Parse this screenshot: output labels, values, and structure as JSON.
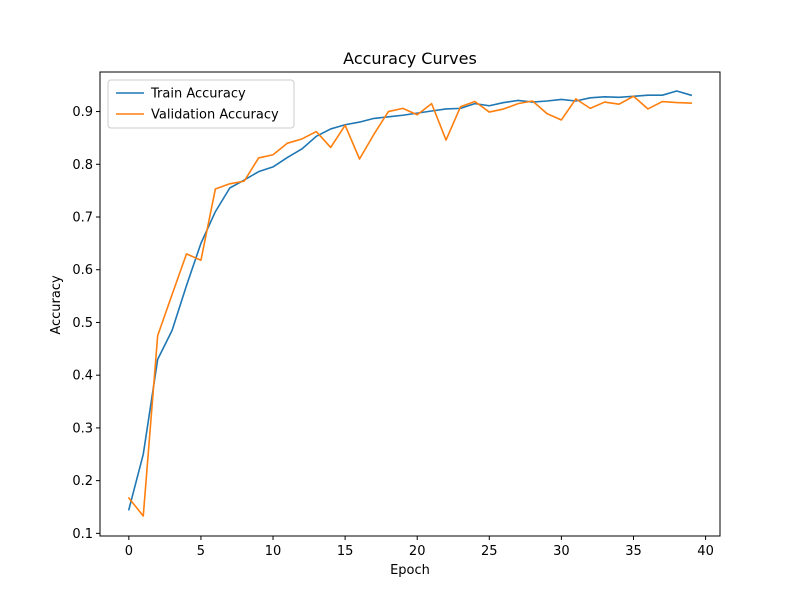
{
  "chart_data": {
    "type": "line",
    "title": "Accuracy Curves",
    "xlabel": "Epoch",
    "ylabel": "Accuracy",
    "xlim": [
      -2,
      41
    ],
    "ylim": [
      0.095,
      0.975
    ],
    "xticks": [
      0,
      5,
      10,
      15,
      20,
      25,
      30,
      35,
      40
    ],
    "yticks": [
      0.1,
      0.2,
      0.3,
      0.4,
      0.5,
      0.6,
      0.7,
      0.8,
      0.9
    ],
    "grid": false,
    "legend_position": "upper-left",
    "x": [
      0,
      1,
      2,
      3,
      4,
      5,
      6,
      7,
      8,
      9,
      10,
      11,
      12,
      13,
      14,
      15,
      16,
      17,
      18,
      19,
      20,
      21,
      22,
      23,
      24,
      25,
      26,
      27,
      28,
      29,
      30,
      31,
      32,
      33,
      34,
      35,
      36,
      37,
      38,
      39
    ],
    "series": [
      {
        "name": "Train Accuracy",
        "color": "#1f77b4",
        "values": [
          0.145,
          0.25,
          0.43,
          0.485,
          0.57,
          0.65,
          0.71,
          0.755,
          0.77,
          0.786,
          0.795,
          0.813,
          0.829,
          0.853,
          0.867,
          0.875,
          0.88,
          0.887,
          0.89,
          0.893,
          0.897,
          0.901,
          0.905,
          0.906,
          0.915,
          0.911,
          0.917,
          0.921,
          0.918,
          0.92,
          0.923,
          0.92,
          0.926,
          0.928,
          0.927,
          0.929,
          0.931,
          0.931,
          0.939,
          0.931
        ]
      },
      {
        "name": "Validation Accuracy",
        "color": "#ff7f0e",
        "values": [
          0.167,
          0.133,
          0.475,
          0.553,
          0.63,
          0.618,
          0.753,
          0.763,
          0.768,
          0.812,
          0.818,
          0.84,
          0.848,
          0.862,
          0.832,
          0.874,
          0.81,
          0.857,
          0.9,
          0.906,
          0.894,
          0.915,
          0.846,
          0.909,
          0.919,
          0.899,
          0.905,
          0.915,
          0.92,
          0.896,
          0.884,
          0.924,
          0.906,
          0.918,
          0.914,
          0.929,
          0.905,
          0.919,
          0.917,
          0.916
        ]
      }
    ]
  }
}
